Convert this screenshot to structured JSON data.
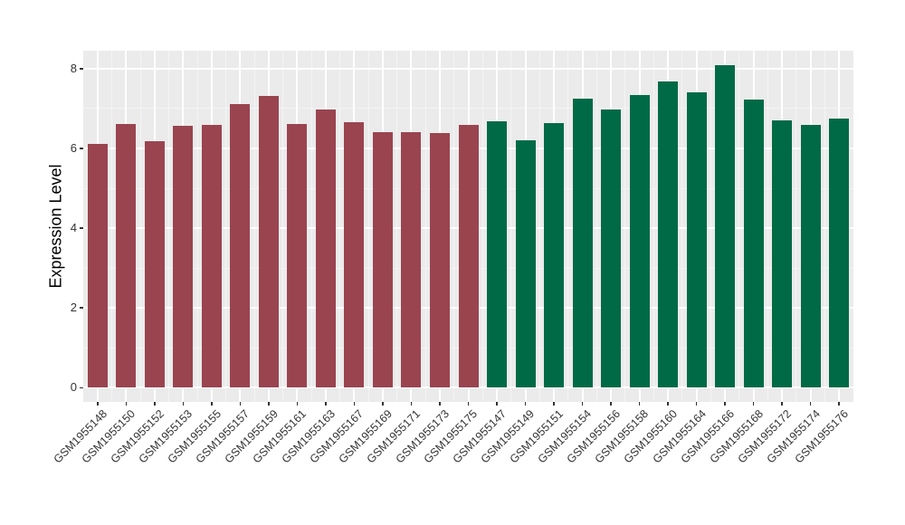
{
  "figure": {
    "background_color": "#FFFFFF",
    "panel_background_color": "#EBEBEB",
    "grid_major_color": "#FFFFFF",
    "grid_minor_color": "#F4F4F4",
    "axis_text_color": "#333333",
    "axis_title_color": "#000000"
  },
  "chart_data": {
    "type": "bar",
    "title": "",
    "xlabel": "",
    "ylabel": "Expression Level",
    "ylim": [
      0,
      8.45
    ],
    "yticks": [
      0,
      2,
      4,
      6,
      8
    ],
    "yticks_minor": [
      1,
      3,
      5,
      7
    ],
    "grid": true,
    "legend_position": "none",
    "x_tick_rotation_degrees": 45,
    "group_colors": [
      "#9A4450",
      "#006A46"
    ],
    "bars": [
      {
        "label": "GSM1955148",
        "value": 6.12,
        "group": 0
      },
      {
        "label": "GSM1955150",
        "value": 6.62,
        "group": 0
      },
      {
        "label": "GSM1955152",
        "value": 6.17,
        "group": 0
      },
      {
        "label": "GSM1955153",
        "value": 6.57,
        "group": 0
      },
      {
        "label": "GSM1955155",
        "value": 6.58,
        "group": 0
      },
      {
        "label": "GSM1955157",
        "value": 7.1,
        "group": 0
      },
      {
        "label": "GSM1955159",
        "value": 7.32,
        "group": 0
      },
      {
        "label": "GSM1955161",
        "value": 6.61,
        "group": 0
      },
      {
        "label": "GSM1955163",
        "value": 6.97,
        "group": 0
      },
      {
        "label": "GSM1955167",
        "value": 6.66,
        "group": 0
      },
      {
        "label": "GSM1955169",
        "value": 6.4,
        "group": 0
      },
      {
        "label": "GSM1955171",
        "value": 6.4,
        "group": 0
      },
      {
        "label": "GSM1955173",
        "value": 6.38,
        "group": 0
      },
      {
        "label": "GSM1955175",
        "value": 6.58,
        "group": 0
      },
      {
        "label": "GSM1955147",
        "value": 6.67,
        "group": 1
      },
      {
        "label": "GSM1955149",
        "value": 6.2,
        "group": 1
      },
      {
        "label": "GSM1955151",
        "value": 6.64,
        "group": 1
      },
      {
        "label": "GSM1955154",
        "value": 7.24,
        "group": 1
      },
      {
        "label": "GSM1955156",
        "value": 6.97,
        "group": 1
      },
      {
        "label": "GSM1955158",
        "value": 7.33,
        "group": 1
      },
      {
        "label": "GSM1955160",
        "value": 7.67,
        "group": 1
      },
      {
        "label": "GSM1955164",
        "value": 7.4,
        "group": 1
      },
      {
        "label": "GSM1955166",
        "value": 8.08,
        "group": 1
      },
      {
        "label": "GSM1955168",
        "value": 7.22,
        "group": 1
      },
      {
        "label": "GSM1955172",
        "value": 6.71,
        "group": 1
      },
      {
        "label": "GSM1955174",
        "value": 6.58,
        "group": 1
      },
      {
        "label": "GSM1955176",
        "value": 6.74,
        "group": 1
      }
    ]
  }
}
